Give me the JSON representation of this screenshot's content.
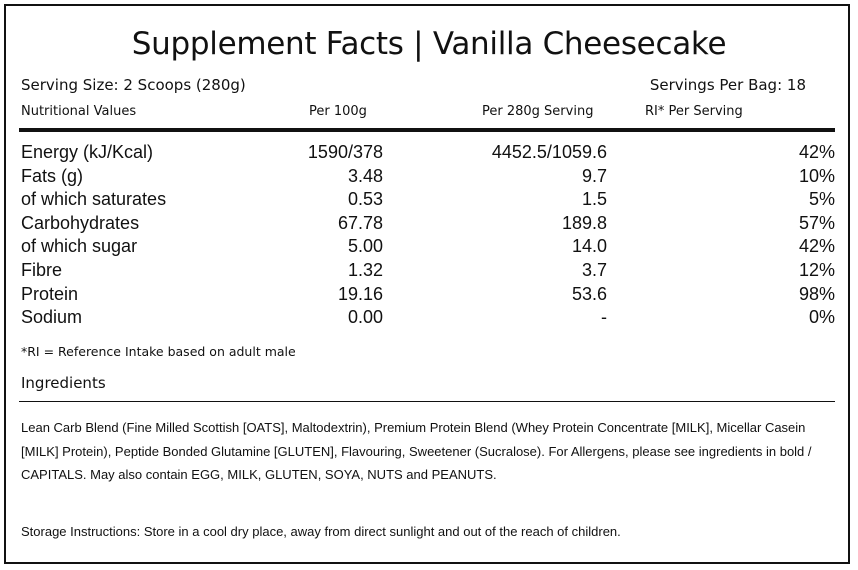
{
  "title": "Supplement Facts  |  Vanilla Cheesecake",
  "serving_size": "Serving Size: 2 Scoops (280g)",
  "servings_per_bag": "Servings Per Bag: 18",
  "columns": {
    "name": "Nutritional Values",
    "per100": "Per 100g",
    "per280": "Per 280g Serving",
    "ri": "RI* Per Serving"
  },
  "nutrients": [
    {
      "name": "Energy (kJ/Kcal)",
      "per100": "1590/378",
      "per280": "4452.5/1059.6",
      "ri": "42%"
    },
    {
      "name": "Fats (g)",
      "per100": "3.48",
      "per280": "9.7",
      "ri": "10%"
    },
    {
      "name": "of which saturates",
      "per100": "0.53",
      "per280": "1.5",
      "ri": "5%"
    },
    {
      "name": "Carbohydrates",
      "per100": "67.78",
      "per280": "189.8",
      "ri": "57%"
    },
    {
      "name": "of which sugar",
      "per100": "5.00",
      "per280": "14.0",
      "ri": "42%"
    },
    {
      "name": "Fibre",
      "per100": "1.32",
      "per280": "3.7",
      "ri": "12%"
    },
    {
      "name": "Protein",
      "per100": "19.16",
      "per280": "53.6",
      "ri": "98%"
    },
    {
      "name": "Sodium",
      "per100": "0.00",
      "per280": "-",
      "ri": "0%"
    }
  ],
  "ri_note": "*RI = Reference Intake based on adult male",
  "ingredients_heading": "Ingredients",
  "ingredients_text": "Lean Carb Blend (Fine Milled Scottish [OATS], Maltodextrin), Premium Protein Blend (Whey Protein Concentrate [MILK], Micellar Casein [MILK] Protein), Peptide Bonded Glutamine [GLUTEN], Flavouring, Sweetener (Sucralose). For Allergens, please see ingredients in bold / CAPITALS. May also contain EGG, MILK, GLUTEN, SOYA, NUTS and PEANUTS.",
  "storage_text": "Storage Instructions: Store in a cool dry place, away from direct sunlight and out of the reach of children."
}
